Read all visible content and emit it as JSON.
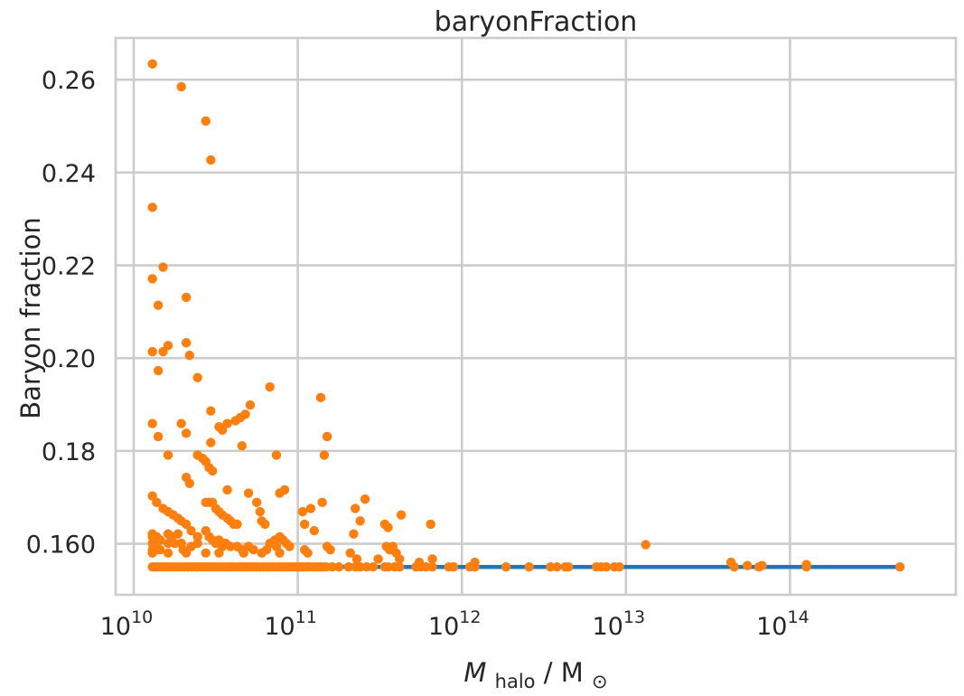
{
  "chart_data": {
    "type": "scatter",
    "title": "baryonFraction",
    "xlabel_main": "M",
    "xlabel_sub": "halo",
    "xlabel_sep": " / M",
    "xlabel_sun": "⊙",
    "ylabel": "Baryon fraction",
    "xscale": "log",
    "xlim": [
      10000000000.0,
      1000000000000000.0
    ],
    "ylim": [
      0.149,
      0.269
    ],
    "xticks": [
      {
        "value": 10000000000.0,
        "base": "10",
        "exp": "10"
      },
      {
        "value": 100000000000.0,
        "base": "10",
        "exp": "11"
      },
      {
        "value": 1000000000000.0,
        "base": "10",
        "exp": "12"
      },
      {
        "value": 10000000000000.0,
        "base": "10",
        "exp": "13"
      },
      {
        "value": 100000000000000.0,
        "base": "10",
        "exp": "14"
      }
    ],
    "yticks": [
      {
        "value": 0.16,
        "label": "0.160"
      },
      {
        "value": 0.18,
        "label": "0.18"
      },
      {
        "value": 0.2,
        "label": "0.20"
      },
      {
        "value": 0.22,
        "label": "0.22"
      },
      {
        "value": 0.24,
        "label": "0.24"
      },
      {
        "value": 0.26,
        "label": "0.26"
      }
    ],
    "grid": true,
    "series": [
      {
        "kind": "line",
        "color": "#1f77b4",
        "points": [
          [
            13000000000.0,
            0.155
          ],
          [
            470000000000000.0,
            0.155
          ]
        ]
      },
      {
        "kind": "scatter",
        "color": "#ff7f0e",
        "points": [
          [
            13000000000.0,
            0.2634
          ],
          [
            19500000000.0,
            0.2585
          ],
          [
            27500000000.0,
            0.2511
          ],
          [
            29500000000.0,
            0.2427
          ],
          [
            13000000000.0,
            0.2325
          ],
          [
            15100000000.0,
            0.2196
          ],
          [
            13000000000.0,
            0.2171
          ],
          [
            20900000000.0,
            0.2131
          ],
          [
            14100000000.0,
            0.2114
          ],
          [
            13000000000.0,
            0.2014
          ],
          [
            15100000000.0,
            0.2014
          ],
          [
            16200000000.0,
            0.2027
          ],
          [
            20900000000.0,
            0.2033
          ],
          [
            21900000000.0,
            0.2006
          ],
          [
            14100000000.0,
            0.1973
          ],
          [
            24500000000.0,
            0.1958
          ],
          [
            67600000000.0,
            0.1938
          ],
          [
            138000000000.0,
            0.1915
          ],
          [
            13000000000.0,
            0.1859
          ],
          [
            19500000000.0,
            0.1859
          ],
          [
            14100000000.0,
            0.1831
          ],
          [
            20900000000.0,
            0.1838
          ],
          [
            29500000000.0,
            0.1886
          ],
          [
            33100000000.0,
            0.1852
          ],
          [
            34700000000.0,
            0.1845
          ],
          [
            37200000000.0,
            0.1859
          ],
          [
            41700000000.0,
            0.1865
          ],
          [
            44700000000.0,
            0.1872
          ],
          [
            47900000000.0,
            0.1879
          ],
          [
            51300000000.0,
            0.1899
          ],
          [
            29500000000.0,
            0.1818
          ],
          [
            45700000000.0,
            0.1811
          ],
          [
            151000000000.0,
            0.1831
          ],
          [
            16200000000.0,
            0.1791
          ],
          [
            24500000000.0,
            0.1791
          ],
          [
            26300000000.0,
            0.1784
          ],
          [
            27500000000.0,
            0.1777
          ],
          [
            28800000000.0,
            0.1764
          ],
          [
            30200000000.0,
            0.1757
          ],
          [
            74100000000.0,
            0.1791
          ],
          [
            145000000000.0,
            0.1791
          ],
          [
            20900000000.0,
            0.1743
          ],
          [
            21900000000.0,
            0.173
          ],
          [
            37200000000.0,
            0.1716
          ],
          [
            50100000000.0,
            0.1709
          ],
          [
            77600000000.0,
            0.1709
          ],
          [
            83200000000.0,
            0.1716
          ],
          [
            13000000000.0,
            0.1703
          ],
          [
            13800000000.0,
            0.1689
          ],
          [
            15100000000.0,
            0.1676
          ],
          [
            16200000000.0,
            0.1669
          ],
          [
            17400000000.0,
            0.1662
          ],
          [
            18600000000.0,
            0.1655
          ],
          [
            19500000000.0,
            0.1649
          ],
          [
            20900000000.0,
            0.1642
          ],
          [
            22400000000.0,
            0.1628
          ],
          [
            24500000000.0,
            0.1615
          ],
          [
            27500000000.0,
            0.1689
          ],
          [
            28800000000.0,
            0.1689
          ],
          [
            30200000000.0,
            0.1689
          ],
          [
            31600000000.0,
            0.1676
          ],
          [
            33100000000.0,
            0.1669
          ],
          [
            34700000000.0,
            0.1662
          ],
          [
            37200000000.0,
            0.1655
          ],
          [
            38900000000.0,
            0.1649
          ],
          [
            40700000000.0,
            0.1642
          ],
          [
            42700000000.0,
            0.1642
          ],
          [
            56200000000.0,
            0.1689
          ],
          [
            58900000000.0,
            0.1669
          ],
          [
            60300000000.0,
            0.1649
          ],
          [
            63100000000.0,
            0.1642
          ],
          [
            107000000000.0,
            0.1669
          ],
          [
            120000000000.0,
            0.1676
          ],
          [
            141000000000.0,
            0.1689
          ],
          [
            110000000000.0,
            0.1642
          ],
          [
            126000000000.0,
            0.1628
          ],
          [
            224000000000.0,
            0.1676
          ],
          [
            257000000000.0,
            0.1696
          ],
          [
            240000000000.0,
            0.1649
          ],
          [
            427000000000.0,
            0.1662
          ],
          [
            339000000000.0,
            0.1642
          ],
          [
            355000000000.0,
            0.1635
          ],
          [
            646000000000.0,
            0.1642
          ],
          [
            219000000000.0,
            0.1621
          ],
          [
            13000000000.0,
            0.1621
          ],
          [
            13000000000.0,
            0.1615
          ],
          [
            13000000000.0,
            0.1601
          ],
          [
            13000000000.0,
            0.1587
          ],
          [
            13000000000.0,
            0.158
          ],
          [
            13800000000.0,
            0.1615
          ],
          [
            13800000000.0,
            0.1601
          ],
          [
            13800000000.0,
            0.1587
          ],
          [
            14500000000.0,
            0.1608
          ],
          [
            14500000000.0,
            0.1587
          ],
          [
            16200000000.0,
            0.1621
          ],
          [
            16200000000.0,
            0.1601
          ],
          [
            16200000000.0,
            0.158
          ],
          [
            17000000000.0,
            0.1615
          ],
          [
            17800000000.0,
            0.1601
          ],
          [
            18600000000.0,
            0.1621
          ],
          [
            19500000000.0,
            0.1601
          ],
          [
            20000000000.0,
            0.1587
          ],
          [
            20900000000.0,
            0.158
          ],
          [
            22400000000.0,
            0.1594
          ],
          [
            24500000000.0,
            0.1601
          ],
          [
            27500000000.0,
            0.1628
          ],
          [
            28800000000.0,
            0.1615
          ],
          [
            30200000000.0,
            0.1608
          ],
          [
            31600000000.0,
            0.1601
          ],
          [
            33100000000.0,
            0.1608
          ],
          [
            34700000000.0,
            0.1594
          ],
          [
            36300000000.0,
            0.1601
          ],
          [
            38900000000.0,
            0.1594
          ],
          [
            42700000000.0,
            0.1594
          ],
          [
            45700000000.0,
            0.1587
          ],
          [
            50100000000.0,
            0.1594
          ],
          [
            53700000000.0,
            0.1587
          ],
          [
            27500000000.0,
            0.158
          ],
          [
            33100000000.0,
            0.158
          ],
          [
            46800000000.0,
            0.158
          ],
          [
            60300000000.0,
            0.158
          ],
          [
            64600000000.0,
            0.1587
          ],
          [
            67600000000.0,
            0.1601
          ],
          [
            72400000000.0,
            0.1608
          ],
          [
            74100000000.0,
            0.1594
          ],
          [
            77600000000.0,
            0.1615
          ],
          [
            81300000000.0,
            0.1608
          ],
          [
            85100000000.0,
            0.1601
          ],
          [
            89100000000.0,
            0.1594
          ],
          [
            77600000000.0,
            0.158
          ],
          [
            110000000000.0,
            0.1587
          ],
          [
            115000000000.0,
            0.158
          ],
          [
            151000000000.0,
            0.1594
          ],
          [
            158000000000.0,
            0.1587
          ],
          [
            209000000000.0,
            0.158
          ],
          [
            229000000000.0,
            0.1567
          ],
          [
            347000000000.0,
            0.1594
          ],
          [
            363000000000.0,
            0.1587
          ],
          [
            380000000000.0,
            0.1594
          ],
          [
            398000000000.0,
            0.158
          ],
          [
            309000000000.0,
            0.1567
          ],
          [
            417000000000.0,
            0.1567
          ],
          [
            550000000000.0,
            0.156
          ],
          [
            661000000000.0,
            0.1567
          ],
          [
            1200000000000.0,
            0.156
          ],
          [
            13200000000000.0,
            0.1598
          ],
          [
            43700000000000.0,
            0.156
          ],
          [
            55000000000000.0,
            0.1553
          ],
          [
            67600000000000.0,
            0.1553
          ],
          [
            126000000000000.0,
            0.1555
          ],
          [
            13000000000.0,
            0.155
          ],
          [
            13500000000.0,
            0.155
          ],
          [
            14100000000.0,
            0.155
          ],
          [
            14800000000.0,
            0.155
          ],
          [
            15500000000.0,
            0.155
          ],
          [
            16200000000.0,
            0.155
          ],
          [
            17000000000.0,
            0.155
          ],
          [
            17800000000.0,
            0.155
          ],
          [
            18600000000.0,
            0.155
          ],
          [
            19500000000.0,
            0.155
          ],
          [
            20400000000.0,
            0.155
          ],
          [
            21400000000.0,
            0.155
          ],
          [
            22400000000.0,
            0.155
          ],
          [
            23400000000.0,
            0.155
          ],
          [
            24500000000.0,
            0.155
          ],
          [
            25700000000.0,
            0.155
          ],
          [
            26900000000.0,
            0.155
          ],
          [
            28200000000.0,
            0.155
          ],
          [
            29500000000.0,
            0.155
          ],
          [
            30900000000.0,
            0.155
          ],
          [
            32400000000.0,
            0.155
          ],
          [
            33900000000.0,
            0.155
          ],
          [
            35500000000.0,
            0.155
          ],
          [
            37200000000.0,
            0.155
          ],
          [
            38900000000.0,
            0.155
          ],
          [
            40700000000.0,
            0.155
          ],
          [
            42700000000.0,
            0.155
          ],
          [
            44700000000.0,
            0.155
          ],
          [
            46800000000.0,
            0.155
          ],
          [
            49000000000.0,
            0.155
          ],
          [
            51300000000.0,
            0.155
          ],
          [
            53700000000.0,
            0.155
          ],
          [
            56200000000.0,
            0.155
          ],
          [
            58900000000.0,
            0.155
          ],
          [
            61700000000.0,
            0.155
          ],
          [
            64600000000.0,
            0.155
          ],
          [
            67600000000.0,
            0.155
          ],
          [
            70800000000.0,
            0.155
          ],
          [
            74100000000.0,
            0.155
          ],
          [
            77600000000.0,
            0.155
          ],
          [
            81300000000.0,
            0.155
          ],
          [
            85100000000.0,
            0.155
          ],
          [
            89100000000.0,
            0.155
          ],
          [
            93300000000.0,
            0.155
          ],
          [
            97700000000.0,
            0.155
          ],
          [
            102000000000.0,
            0.155
          ],
          [
            107000000000.0,
            0.155
          ],
          [
            112000000000.0,
            0.155
          ],
          [
            117000000000.0,
            0.155
          ],
          [
            123000000000.0,
            0.155
          ],
          [
            129000000000.0,
            0.155
          ],
          [
            135000000000.0,
            0.155
          ],
          [
            141000000000.0,
            0.155
          ],
          [
            148000000000.0,
            0.155
          ],
          [
            162000000000.0,
            0.155
          ],
          [
            178000000000.0,
            0.155
          ],
          [
            204000000000.0,
            0.155
          ],
          [
            224000000000.0,
            0.155
          ],
          [
            240000000000.0,
            0.155
          ],
          [
            263000000000.0,
            0.155
          ],
          [
            288000000000.0,
            0.155
          ],
          [
            339000000000.0,
            0.155
          ],
          [
            355000000000.0,
            0.155
          ],
          [
            389000000000.0,
            0.155
          ],
          [
            417000000000.0,
            0.155
          ],
          [
            525000000000.0,
            0.155
          ],
          [
            562000000000.0,
            0.155
          ],
          [
            603000000000.0,
            0.155
          ],
          [
            661000000000.0,
            0.155
          ],
          [
            832000000000.0,
            0.155
          ],
          [
            891000000000.0,
            0.155
          ],
          [
            1120000000000.0,
            0.155
          ],
          [
            1200000000000.0,
            0.155
          ],
          [
            1860000000000.0,
            0.155
          ],
          [
            2570000000000.0,
            0.155
          ],
          [
            3470000000000.0,
            0.155
          ],
          [
            3800000000000.0,
            0.155
          ],
          [
            4270000000000.0,
            0.155
          ],
          [
            4470000000000.0,
            0.155
          ],
          [
            6610000000000.0,
            0.155
          ],
          [
            7080000000000.0,
            0.155
          ],
          [
            7590000000000.0,
            0.155
          ],
          [
            8510000000000.0,
            0.155
          ],
          [
            9120000000000.0,
            0.155
          ],
          [
            45700000000000.0,
            0.155
          ],
          [
            64600000000000.0,
            0.155
          ],
          [
            126000000000000.0,
            0.155
          ],
          [
            468000000000000.0,
            0.155
          ]
        ]
      }
    ]
  }
}
